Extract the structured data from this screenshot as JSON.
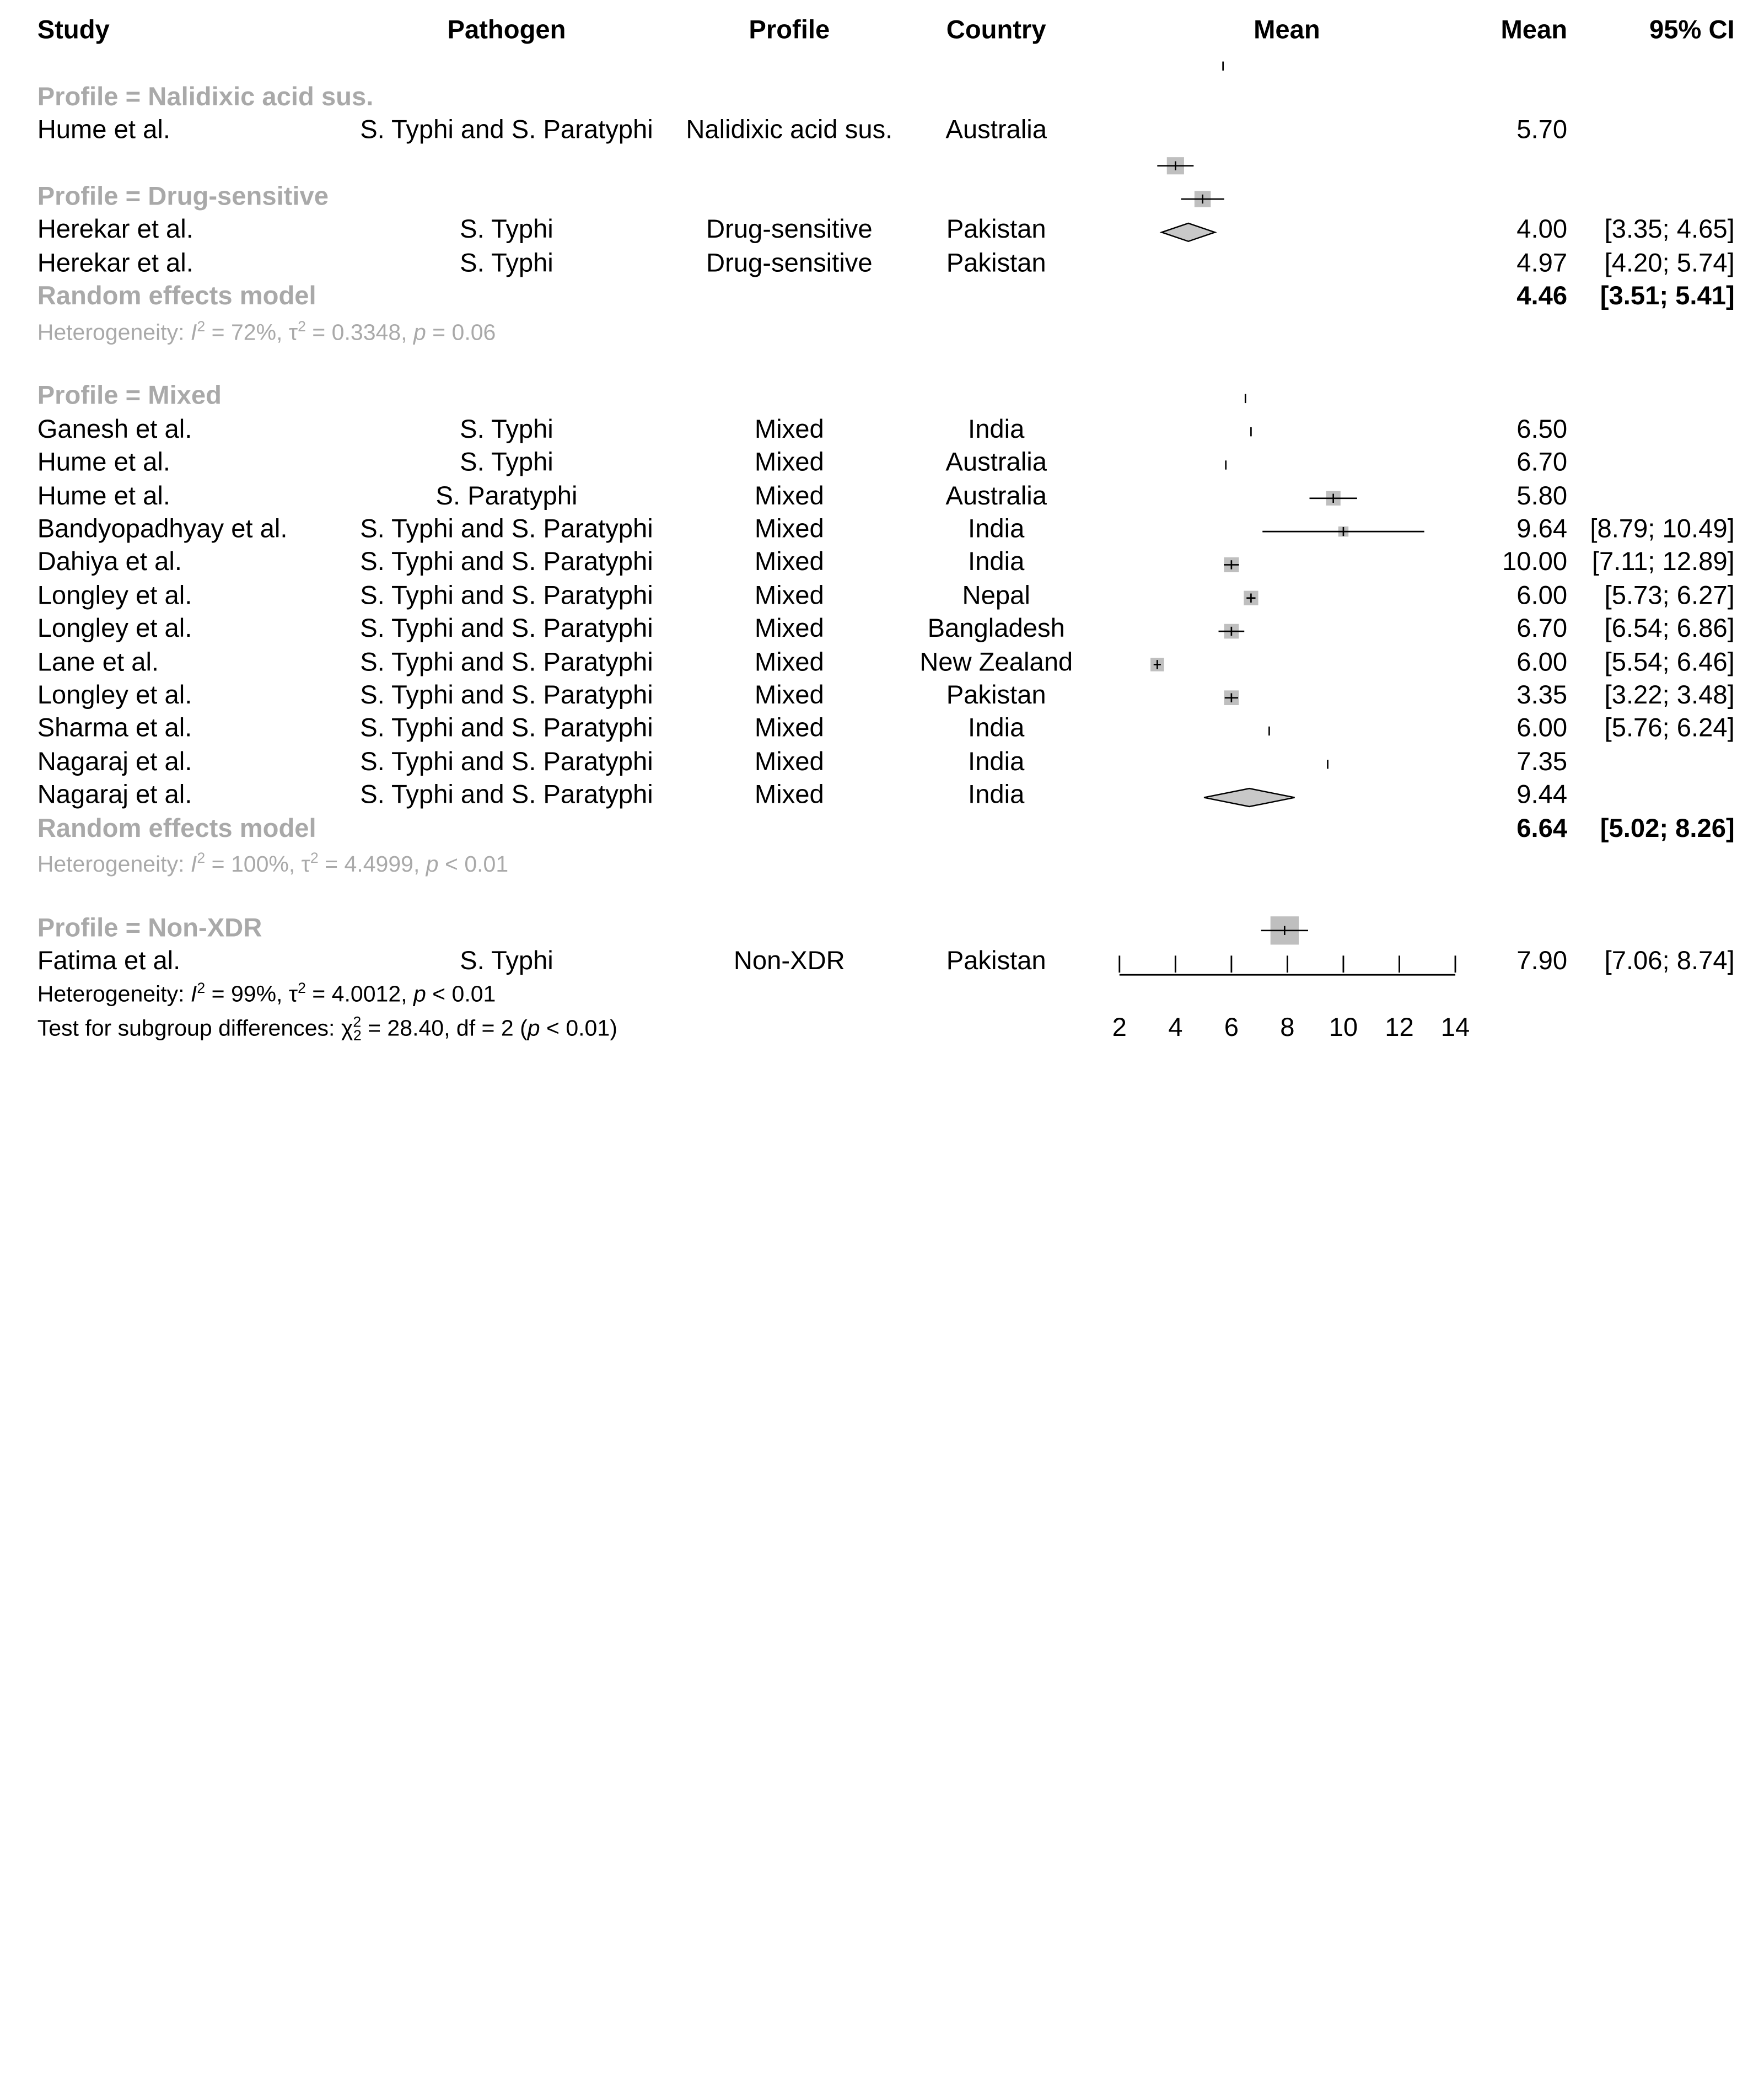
{
  "header": {
    "study": "Study",
    "pathogen": "Pathogen",
    "profile": "Profile",
    "country": "Country",
    "mean_plot": "Mean",
    "mean": "Mean",
    "ci": "95% CI"
  },
  "groups": [
    {
      "label": "Profile = Nalidixic acid sus.",
      "rows": [
        {
          "study": "Hume et al.",
          "pathogen": "S. Typhi and S. Paratyphi",
          "profile": "Nalidixic acid sus.",
          "country": "Australia",
          "mean": "5.70",
          "ci": ""
        }
      ]
    },
    {
      "label": "Profile = Drug-sensitive",
      "rows": [
        {
          "study": "Herekar et al.",
          "pathogen": "S. Typhi",
          "profile": "Drug-sensitive",
          "country": "Pakistan",
          "mean": "4.00",
          "ci": "[3.35;  4.65]"
        },
        {
          "study": "Herekar et al.",
          "pathogen": "S. Typhi",
          "profile": "Drug-sensitive",
          "country": "Pakistan",
          "mean": "4.97",
          "ci": "[4.20;  5.74]"
        }
      ],
      "model": {
        "label": "Random effects model",
        "mean": "4.46",
        "ci": "[3.51;  5.41]"
      },
      "het": {
        "prefix": "Heterogeneity: ",
        "i_sym": "I",
        "i2_val": " = 72%, ",
        "tau_sym": "τ",
        "tau2_val": " = 0.3348, ",
        "p_sym": "p",
        "p_val": " = 0.06"
      }
    },
    {
      "label": "Profile = Mixed",
      "rows": [
        {
          "study": "Ganesh et al.",
          "pathogen": "S. Typhi",
          "profile": "Mixed",
          "country": "India",
          "mean": "6.50",
          "ci": ""
        },
        {
          "study": "Hume et al.",
          "pathogen": "S. Typhi",
          "profile": "Mixed",
          "country": "Australia",
          "mean": "6.70",
          "ci": ""
        },
        {
          "study": "Hume et al.",
          "pathogen": "S. Paratyphi",
          "profile": "Mixed",
          "country": "Australia",
          "mean": "5.80",
          "ci": ""
        },
        {
          "study": "Bandyopadhyay et al.",
          "pathogen": "S. Typhi and S. Paratyphi",
          "profile": "Mixed",
          "country": "India",
          "mean": "9.64",
          "ci": "[8.79; 10.49]"
        },
        {
          "study": "Dahiya et al.",
          "pathogen": "S. Typhi and S. Paratyphi",
          "profile": "Mixed",
          "country": "India",
          "mean": "10.00",
          "ci": "[7.11; 12.89]"
        },
        {
          "study": "Longley et al.",
          "pathogen": "S. Typhi and S. Paratyphi",
          "profile": "Mixed",
          "country": "Nepal",
          "mean": "6.00",
          "ci": "[5.73;  6.27]"
        },
        {
          "study": "Longley et al.",
          "pathogen": "S. Typhi and S. Paratyphi",
          "profile": "Mixed",
          "country": "Bangladesh",
          "mean": "6.70",
          "ci": "[6.54;  6.86]"
        },
        {
          "study": "Lane et al.",
          "pathogen": "S. Typhi and S. Paratyphi",
          "profile": "Mixed",
          "country": "New Zealand",
          "mean": "6.00",
          "ci": "[5.54;  6.46]"
        },
        {
          "study": "Longley et al.",
          "pathogen": "S. Typhi and S. Paratyphi",
          "profile": "Mixed",
          "country": "Pakistan",
          "mean": "3.35",
          "ci": "[3.22;  3.48]"
        },
        {
          "study": "Sharma et al.",
          "pathogen": "S. Typhi and S. Paratyphi",
          "profile": "Mixed",
          "country": "India",
          "mean": "6.00",
          "ci": "[5.76;  6.24]"
        },
        {
          "study": "Nagaraj et al.",
          "pathogen": "S. Typhi and S. Paratyphi",
          "profile": "Mixed",
          "country": "India",
          "mean": "7.35",
          "ci": ""
        },
        {
          "study": "Nagaraj et al.",
          "pathogen": "S. Typhi and S. Paratyphi",
          "profile": "Mixed",
          "country": "India",
          "mean": "9.44",
          "ci": ""
        }
      ],
      "model": {
        "label": "Random effects model",
        "mean": "6.64",
        "ci": "[5.02;  8.26]"
      },
      "het": {
        "prefix": "Heterogeneity: ",
        "i_sym": "I",
        "i2_val": " = 100%, ",
        "tau_sym": "τ",
        "tau2_val": " = 4.4999, ",
        "p_sym": "p",
        "p_val": " < 0.01"
      }
    },
    {
      "label": "Profile = Non-XDR",
      "rows": [
        {
          "study": "Fatima et al.",
          "pathogen": "S. Typhi",
          "profile": "Non-XDR",
          "country": "Pakistan",
          "mean": "7.90",
          "ci": "[7.06;  8.74]"
        }
      ]
    }
  ],
  "overall_het": {
    "prefix": "Heterogeneity: ",
    "i_sym": "I",
    "i2_val": " = 99%, ",
    "tau_sym": "τ",
    "tau2_val": " = 4.0012, ",
    "p_sym": "p",
    "p_val": " < 0.01"
  },
  "subgroup_test": {
    "prefix": "Test for subgroup differences: ",
    "chi_sym": "χ",
    "chi_sub": "2",
    "chi_val": " = 28.40, df = 2 (",
    "p_sym": "p",
    "p_val": " < 0.01)"
  },
  "chart_data": {
    "type": "forest",
    "xlim": [
      2,
      14
    ],
    "x_ticks": [
      "2",
      "4",
      "6",
      "8",
      "10",
      "12",
      "14"
    ],
    "colors": {
      "square": "#bfbfbf",
      "diamond": "#c8c8c8",
      "subgroup_text": "#a9a9a9"
    },
    "studies": [
      {
        "row": 1,
        "mean": 5.7,
        "lower": null,
        "upper": null,
        "weight": 0
      },
      {
        "row": 4,
        "mean": 4.0,
        "lower": 3.35,
        "upper": 4.65,
        "weight": 0.36
      },
      {
        "row": 5,
        "mean": 4.97,
        "lower": 4.2,
        "upper": 5.74,
        "weight": 0.32
      },
      {
        "row": 11,
        "mean": 6.5,
        "lower": null,
        "upper": null,
        "weight": 0
      },
      {
        "row": 12,
        "mean": 6.7,
        "lower": null,
        "upper": null,
        "weight": 0
      },
      {
        "row": 13,
        "mean": 5.8,
        "lower": null,
        "upper": null,
        "weight": 0
      },
      {
        "row": 14,
        "mean": 9.64,
        "lower": 8.79,
        "upper": 10.49,
        "weight": 0.24
      },
      {
        "row": 15,
        "mean": 10.0,
        "lower": 7.11,
        "upper": 12.89,
        "weight": 0.05
      },
      {
        "row": 16,
        "mean": 6.0,
        "lower": 5.73,
        "upper": 6.27,
        "weight": 0.26
      },
      {
        "row": 17,
        "mean": 6.7,
        "lower": 6.54,
        "upper": 6.86,
        "weight": 0.24
      },
      {
        "row": 18,
        "mean": 6.0,
        "lower": 5.54,
        "upper": 6.46,
        "weight": 0.25
      },
      {
        "row": 19,
        "mean": 3.35,
        "lower": 3.22,
        "upper": 3.48,
        "weight": 0.2
      },
      {
        "row": 20,
        "mean": 6.0,
        "lower": 5.76,
        "upper": 6.24,
        "weight": 0.25
      },
      {
        "row": 21,
        "mean": 7.35,
        "lower": null,
        "upper": null,
        "weight": 0
      },
      {
        "row": 22,
        "mean": 9.44,
        "lower": null,
        "upper": null,
        "weight": 0
      },
      {
        "row": 27,
        "mean": 7.9,
        "lower": 7.06,
        "upper": 8.74,
        "weight": 0.85
      }
    ],
    "summaries": [
      {
        "row": 6,
        "mean": 4.46,
        "lower": 3.51,
        "upper": 5.41
      },
      {
        "row": 23,
        "mean": 6.64,
        "lower": 5.02,
        "upper": 8.26
      }
    ]
  }
}
